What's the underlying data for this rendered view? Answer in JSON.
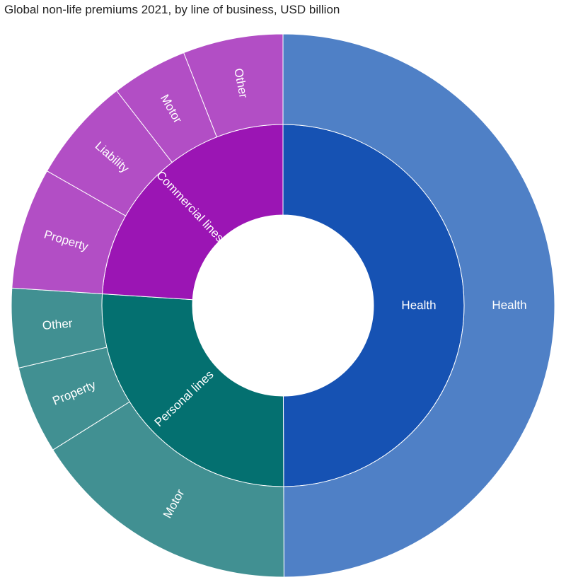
{
  "chart_data": {
    "type": "sunburst",
    "title": "Global non-life premiums 2021, by line of business, USD billion",
    "inner_ring": [
      {
        "name": "Health",
        "value": 1300,
        "color": "#1652b3"
      },
      {
        "name": "Personal lines",
        "value": 679,
        "color": "#047070"
      },
      {
        "name": "Commercial lines",
        "value": 624,
        "color": "#9b15b4"
      }
    ],
    "outer_ring": [
      {
        "name": "Health",
        "parent": "Health",
        "value": 1300,
        "color": "#4f80c6"
      },
      {
        "name": "Motor",
        "parent": "Personal lines",
        "value": 420,
        "color": "#419092"
      },
      {
        "name": "Property",
        "parent": "Personal lines",
        "value": 136,
        "color": "#419092"
      },
      {
        "name": "Other",
        "parent": "Personal lines",
        "value": 123,
        "color": "#419092"
      },
      {
        "name": "Property",
        "parent": "Commercial lines",
        "value": 188,
        "color": "#b24ec5"
      },
      {
        "name": "Liability",
        "parent": "Commercial lines",
        "value": 163,
        "color": "#b24ec5"
      },
      {
        "name": "Motor",
        "parent": "Commercial lines",
        "value": 118,
        "color": "#b24ec5"
      },
      {
        "name": "Other",
        "parent": "Commercial lines",
        "value": 155,
        "color": "#b24ec5"
      }
    ]
  }
}
